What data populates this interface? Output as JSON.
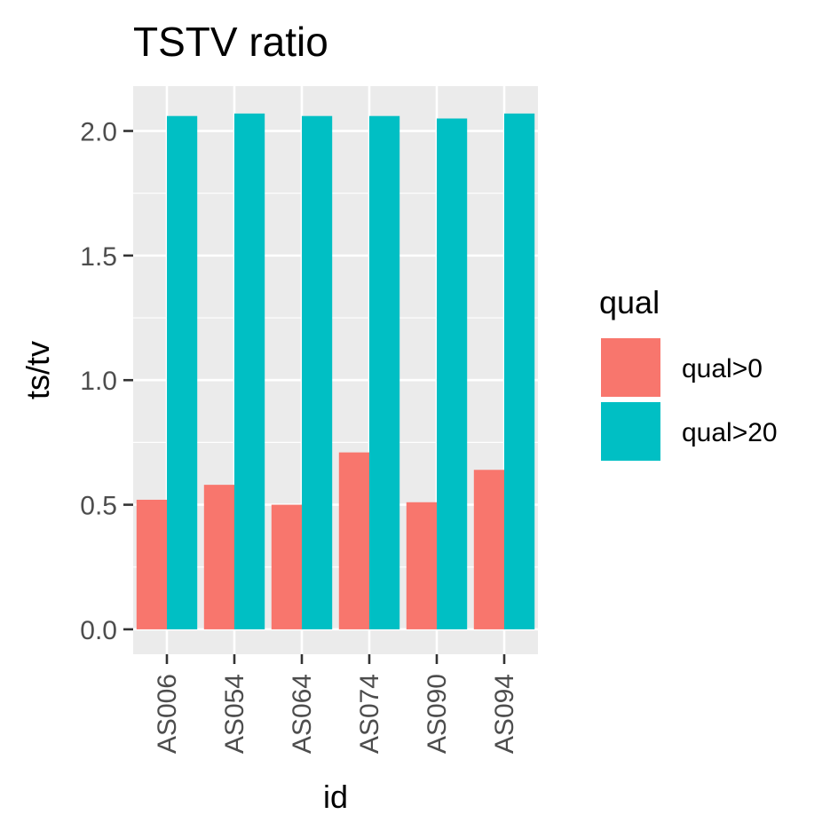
{
  "chart_data": {
    "type": "bar",
    "title": "TSTV ratio",
    "xlabel": "id",
    "ylabel": "ts/tv",
    "categories": [
      "AS006",
      "AS054",
      "AS064",
      "AS074",
      "AS090",
      "AS094"
    ],
    "series": [
      {
        "name": "qual>0",
        "color": "#F8766D",
        "values": [
          0.52,
          0.58,
          0.5,
          0.71,
          0.51,
          0.64
        ]
      },
      {
        "name": "qual>20",
        "color": "#00BFC4",
        "values": [
          2.06,
          2.07,
          2.06,
          2.06,
          2.05,
          2.07
        ]
      }
    ],
    "ylim": [
      -0.1,
      2.18
    ],
    "yticks": [
      0.0,
      0.5,
      1.0,
      1.5,
      2.0
    ],
    "ytick_labels": [
      "0.0",
      "0.5",
      "1.0",
      "1.5",
      "2.0"
    ],
    "legend": {
      "title": "qual",
      "position": "right"
    },
    "grid": true,
    "panel_background": "#EBEBEB"
  }
}
